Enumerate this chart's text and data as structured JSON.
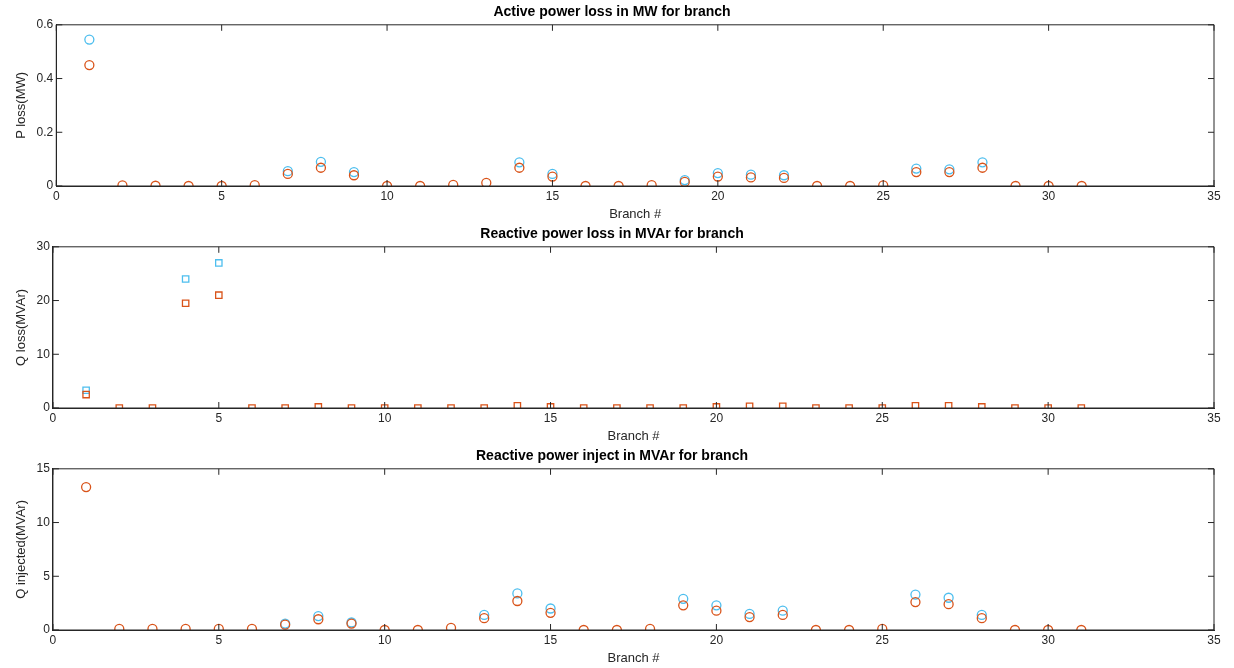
{
  "chart_data": [
    {
      "type": "scatter",
      "title": "Active power loss in MW for branch",
      "xlabel": "Branch #",
      "ylabel": "P loss(MW)",
      "marker": "circle",
      "legend": false,
      "grid": false,
      "x": [
        1,
        2,
        3,
        4,
        5,
        6,
        7,
        8,
        9,
        10,
        11,
        12,
        13,
        14,
        15,
        16,
        17,
        18,
        19,
        20,
        21,
        22,
        23,
        24,
        25,
        26,
        27,
        28,
        29,
        30,
        31
      ],
      "xlim": [
        0,
        35
      ],
      "xticks": [
        0,
        5,
        10,
        15,
        20,
        25,
        30,
        35
      ],
      "ylim": [
        0,
        0.6
      ],
      "yticks": [
        0,
        0.2,
        0.4,
        0.6
      ],
      "series": [
        {
          "color": "#d95319",
          "values": [
            0.45,
            0.002,
            0.001,
            0,
            0,
            0.003,
            0.045,
            0.068,
            0.04,
            0,
            0,
            0.004,
            0.012,
            0.068,
            0.035,
            0,
            0,
            0.003,
            0.015,
            0.035,
            0.032,
            0.03,
            0,
            0,
            0.002,
            0.052,
            0.052,
            0.068,
            0,
            0,
            0
          ]
        },
        {
          "color": "#4dbeee",
          "values": [
            0.545,
            null,
            null,
            null,
            null,
            null,
            0.055,
            0.09,
            0.052,
            null,
            null,
            null,
            null,
            0.088,
            0.045,
            null,
            null,
            null,
            0.022,
            0.048,
            0.042,
            0.04,
            null,
            null,
            null,
            0.065,
            0.062,
            0.088,
            null,
            null,
            null
          ]
        }
      ]
    },
    {
      "type": "scatter",
      "title": "Reactive power loss in MVAr for branch",
      "xlabel": "Branch #",
      "ylabel": "Q loss(MVAr)",
      "marker": "square",
      "legend": false,
      "grid": false,
      "x": [
        1,
        2,
        3,
        4,
        5,
        6,
        7,
        8,
        9,
        10,
        11,
        12,
        13,
        14,
        15,
        16,
        17,
        18,
        19,
        20,
        21,
        22,
        23,
        24,
        25,
        26,
        27,
        28,
        29,
        30,
        31
      ],
      "xlim": [
        0,
        35
      ],
      "xticks": [
        0,
        5,
        10,
        15,
        20,
        25,
        30,
        35
      ],
      "ylim": [
        0,
        30
      ],
      "yticks": [
        0,
        10,
        20,
        30
      ],
      "series": [
        {
          "color": "#d95319",
          "values": [
            2.5,
            0,
            0,
            19.5,
            21,
            0,
            0,
            0.2,
            0,
            0,
            0,
            0,
            0,
            0.4,
            0.2,
            0,
            0,
            0,
            0,
            0.2,
            0.3,
            0.3,
            0,
            0,
            0,
            0.4,
            0.4,
            0.2,
            0,
            0,
            0
          ]
        },
        {
          "color": "#4dbeee",
          "values": [
            3.3,
            null,
            null,
            24,
            27,
            null,
            null,
            null,
            null,
            null,
            null,
            null,
            null,
            null,
            null,
            null,
            null,
            null,
            null,
            null,
            null,
            null,
            null,
            null,
            null,
            null,
            null,
            null,
            null,
            null,
            null
          ]
        }
      ]
    },
    {
      "type": "scatter",
      "title": "Reactive power inject in MVAr for branch",
      "xlabel": "Branch #",
      "ylabel": "Q injected(MVAr)",
      "marker": "circle",
      "legend": false,
      "grid": false,
      "x": [
        1,
        2,
        3,
        4,
        5,
        6,
        7,
        8,
        9,
        10,
        11,
        12,
        13,
        14,
        15,
        16,
        17,
        18,
        19,
        20,
        21,
        22,
        23,
        24,
        25,
        26,
        27,
        28,
        29,
        30,
        31
      ],
      "xlim": [
        0,
        35
      ],
      "xticks": [
        0,
        5,
        10,
        15,
        20,
        25,
        30,
        35
      ],
      "ylim": [
        0,
        15
      ],
      "yticks": [
        0,
        5,
        10,
        15
      ],
      "series": [
        {
          "color": "#d95319",
          "values": [
            13.3,
            0.1,
            0.1,
            0.1,
            0.1,
            0.1,
            0.5,
            1.0,
            0.6,
            0,
            0,
            0.2,
            1.1,
            2.7,
            1.6,
            0,
            0,
            0.1,
            2.3,
            1.8,
            1.2,
            1.4,
            0,
            0,
            0.1,
            2.6,
            2.4,
            1.1,
            0,
            0,
            0
          ]
        },
        {
          "color": "#4dbeee",
          "values": [
            null,
            null,
            null,
            null,
            null,
            null,
            0.6,
            1.3,
            0.7,
            null,
            null,
            null,
            1.4,
            3.4,
            2.0,
            null,
            null,
            null,
            2.9,
            2.3,
            1.5,
            1.8,
            null,
            null,
            null,
            3.3,
            3.0,
            1.4,
            null,
            null,
            null
          ]
        }
      ]
    }
  ]
}
